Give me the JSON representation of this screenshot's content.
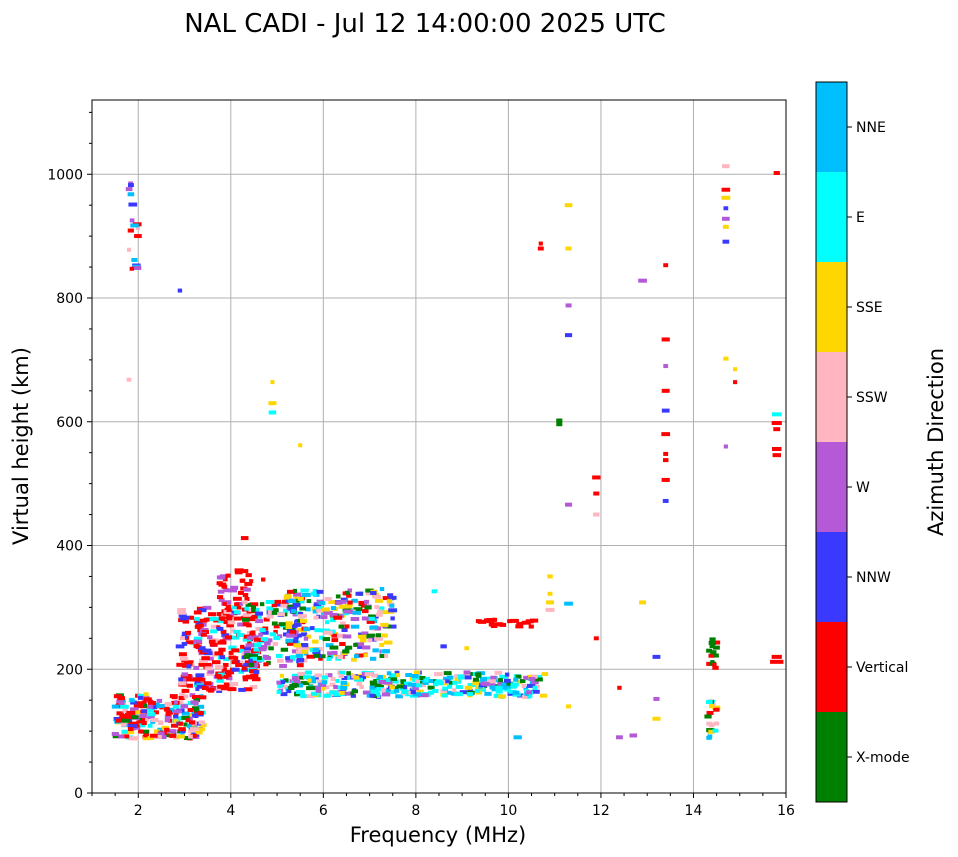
{
  "chart_data": {
    "type": "scatter",
    "title": "NAL CADI - Jul 12 14:00:00 2025 UTC",
    "xlabel": "Frequency (MHz)",
    "ylabel": "Virtual height (km)",
    "xlim": [
      1,
      16
    ],
    "ylim": [
      0,
      1120
    ],
    "xticks": [
      2,
      4,
      6,
      8,
      10,
      12,
      14,
      16
    ],
    "yticks": [
      0,
      200,
      400,
      600,
      800,
      1000
    ],
    "grid": true,
    "colorbar": {
      "label": "Azimuth Direction",
      "categories": [
        {
          "name": "X-mode",
          "color": "#008000"
        },
        {
          "name": "Vertical",
          "color": "#ff0000"
        },
        {
          "name": "NNW",
          "color": "#3a3aff"
        },
        {
          "name": "W",
          "color": "#b45ad6"
        },
        {
          "name": "SSW",
          "color": "#ffb6c1"
        },
        {
          "name": "SSE",
          "color": "#ffd700"
        },
        {
          "name": "E",
          "color": "#00ffff"
        },
        {
          "name": "NNE",
          "color": "#00bfff"
        }
      ]
    },
    "echo_clusters": [
      {
        "f": [
          1.5,
          3.4
        ],
        "h": [
          88,
          160
        ],
        "n": 220,
        "cats": [
          "Vertical",
          "Vertical",
          "Vertical",
          "W",
          "SSW",
          "SSE",
          "NNW",
          "X-mode",
          "E",
          "NNE"
        ]
      },
      {
        "f": [
          2.9,
          4.6
        ],
        "h": [
          165,
          300
        ],
        "n": 260,
        "cats": [
          "Vertical",
          "Vertical",
          "Vertical",
          "Vertical",
          "Vertical",
          "W",
          "NNW",
          "E",
          "SSW"
        ]
      },
      {
        "f": [
          3.7,
          4.5
        ],
        "h": [
          300,
          360
        ],
        "n": 35,
        "cats": [
          "Vertical",
          "Vertical",
          "W"
        ]
      },
      {
        "f": [
          4.3,
          5.6
        ],
        "h": [
          205,
          310
        ],
        "n": 110,
        "cats": [
          "Vertical",
          "W",
          "E",
          "NNW",
          "SSW",
          "X-mode"
        ]
      },
      {
        "f": [
          5.2,
          7.5
        ],
        "h": [
          215,
          330
        ],
        "n": 240,
        "cats": [
          "E",
          "W",
          "NNW",
          "SSW",
          "SSE",
          "Vertical",
          "X-mode",
          "NNE"
        ]
      },
      {
        "f": [
          5.0,
          10.8
        ],
        "h": [
          155,
          195
        ],
        "n": 340,
        "cats": [
          "E",
          "E",
          "E",
          "NNE",
          "W",
          "NNW",
          "SSE",
          "X-mode",
          "SSW"
        ]
      },
      {
        "f": [
          9.3,
          10.6
        ],
        "h": [
          268,
          280
        ],
        "n": 22,
        "cats": [
          "Vertical"
        ]
      },
      {
        "f": [
          14.3,
          14.5
        ],
        "h": [
          88,
          150
        ],
        "n": 18,
        "cats": [
          "Vertical",
          "E",
          "NNE",
          "SSW",
          "SSE",
          "X-mode"
        ]
      },
      {
        "f": [
          14.3,
          14.5
        ],
        "h": [
          202,
          250
        ],
        "n": 16,
        "cats": [
          "X-mode",
          "Vertical"
        ]
      },
      {
        "f": [
          1.8,
          2.0
        ],
        "h": [
          840,
          995
        ],
        "n": 16,
        "cats": [
          "NNW",
          "W",
          "Vertical",
          "NNE",
          "SSW"
        ]
      }
    ],
    "isolated_echoes": [
      {
        "f": 15.8,
        "h": 1002,
        "c": "Vertical"
      },
      {
        "f": 15.8,
        "h": 598,
        "c": "Vertical"
      },
      {
        "f": 15.8,
        "h": 588,
        "c": "Vertical"
      },
      {
        "f": 15.8,
        "h": 612,
        "c": "E"
      },
      {
        "f": 15.8,
        "h": 556,
        "c": "Vertical"
      },
      {
        "f": 15.8,
        "h": 546,
        "c": "Vertical"
      },
      {
        "f": 15.8,
        "h": 220,
        "c": "Vertical"
      },
      {
        "f": 15.8,
        "h": 212,
        "c": "Vertical"
      },
      {
        "f": 14.7,
        "h": 1013,
        "c": "SSW"
      },
      {
        "f": 14.7,
        "h": 975,
        "c": "Vertical"
      },
      {
        "f": 14.7,
        "h": 962,
        "c": "SSE"
      },
      {
        "f": 14.7,
        "h": 945,
        "c": "NNW"
      },
      {
        "f": 14.7,
        "h": 928,
        "c": "W"
      },
      {
        "f": 14.7,
        "h": 915,
        "c": "SSE"
      },
      {
        "f": 14.7,
        "h": 891,
        "c": "NNW"
      },
      {
        "f": 14.7,
        "h": 702,
        "c": "SSE"
      },
      {
        "f": 14.9,
        "h": 685,
        "c": "SSE"
      },
      {
        "f": 14.9,
        "h": 664,
        "c": "Vertical"
      },
      {
        "f": 14.7,
        "h": 560,
        "c": "W"
      },
      {
        "f": 13.4,
        "h": 853,
        "c": "Vertical"
      },
      {
        "f": 13.4,
        "h": 733,
        "c": "Vertical"
      },
      {
        "f": 13.4,
        "h": 690,
        "c": "W"
      },
      {
        "f": 13.4,
        "h": 650,
        "c": "Vertical"
      },
      {
        "f": 13.4,
        "h": 618,
        "c": "NNW"
      },
      {
        "f": 13.4,
        "h": 580,
        "c": "Vertical"
      },
      {
        "f": 13.4,
        "h": 548,
        "c": "Vertical"
      },
      {
        "f": 13.4,
        "h": 538,
        "c": "Vertical"
      },
      {
        "f": 13.4,
        "h": 506,
        "c": "Vertical"
      },
      {
        "f": 13.4,
        "h": 472,
        "c": "NNW"
      },
      {
        "f": 12.9,
        "h": 828,
        "c": "W"
      },
      {
        "f": 12.9,
        "h": 308,
        "c": "SSE"
      },
      {
        "f": 13.2,
        "h": 220,
        "c": "NNW"
      },
      {
        "f": 13.2,
        "h": 152,
        "c": "W"
      },
      {
        "f": 13.2,
        "h": 120,
        "c": "SSE"
      },
      {
        "f": 12.7,
        "h": 93,
        "c": "W"
      },
      {
        "f": 12.4,
        "h": 90,
        "c": "W"
      },
      {
        "f": 12.4,
        "h": 170,
        "c": "Vertical"
      },
      {
        "f": 11.9,
        "h": 510,
        "c": "Vertical"
      },
      {
        "f": 11.9,
        "h": 484,
        "c": "Vertical"
      },
      {
        "f": 11.9,
        "h": 450,
        "c": "SSW"
      },
      {
        "f": 11.9,
        "h": 250,
        "c": "Vertical"
      },
      {
        "f": 11.3,
        "h": 950,
        "c": "SSE"
      },
      {
        "f": 11.3,
        "h": 880,
        "c": "SSE"
      },
      {
        "f": 11.3,
        "h": 788,
        "c": "W"
      },
      {
        "f": 11.3,
        "h": 740,
        "c": "NNW"
      },
      {
        "f": 11.3,
        "h": 466,
        "c": "W"
      },
      {
        "f": 11.3,
        "h": 306,
        "c": "NNE"
      },
      {
        "f": 11.3,
        "h": 140,
        "c": "SSE"
      },
      {
        "f": 11.1,
        "h": 602,
        "c": "X-mode"
      },
      {
        "f": 11.1,
        "h": 596,
        "c": "X-mode"
      },
      {
        "f": 10.7,
        "h": 888,
        "c": "Vertical"
      },
      {
        "f": 10.7,
        "h": 880,
        "c": "Vertical"
      },
      {
        "f": 10.9,
        "h": 350,
        "c": "SSE"
      },
      {
        "f": 10.9,
        "h": 322,
        "c": "SSE"
      },
      {
        "f": 10.9,
        "h": 308,
        "c": "SSE"
      },
      {
        "f": 10.9,
        "h": 296,
        "c": "SSW"
      },
      {
        "f": 10.2,
        "h": 90,
        "c": "NNE"
      },
      {
        "f": 8.4,
        "h": 326,
        "c": "E"
      },
      {
        "f": 8.6,
        "h": 237,
        "c": "NNW"
      },
      {
        "f": 9.1,
        "h": 234,
        "c": "SSE"
      },
      {
        "f": 4.9,
        "h": 664,
        "c": "SSE"
      },
      {
        "f": 4.9,
        "h": 630,
        "c": "SSE"
      },
      {
        "f": 4.9,
        "h": 615,
        "c": "E"
      },
      {
        "f": 5.5,
        "h": 562,
        "c": "SSE"
      },
      {
        "f": 2.9,
        "h": 812,
        "c": "NNW"
      },
      {
        "f": 1.8,
        "h": 668,
        "c": "SSW"
      },
      {
        "f": 1.8,
        "h": 878,
        "c": "SSW"
      },
      {
        "f": 4.3,
        "h": 412,
        "c": "Vertical"
      },
      {
        "f": 4.7,
        "h": 345,
        "c": "Vertical"
      }
    ]
  }
}
